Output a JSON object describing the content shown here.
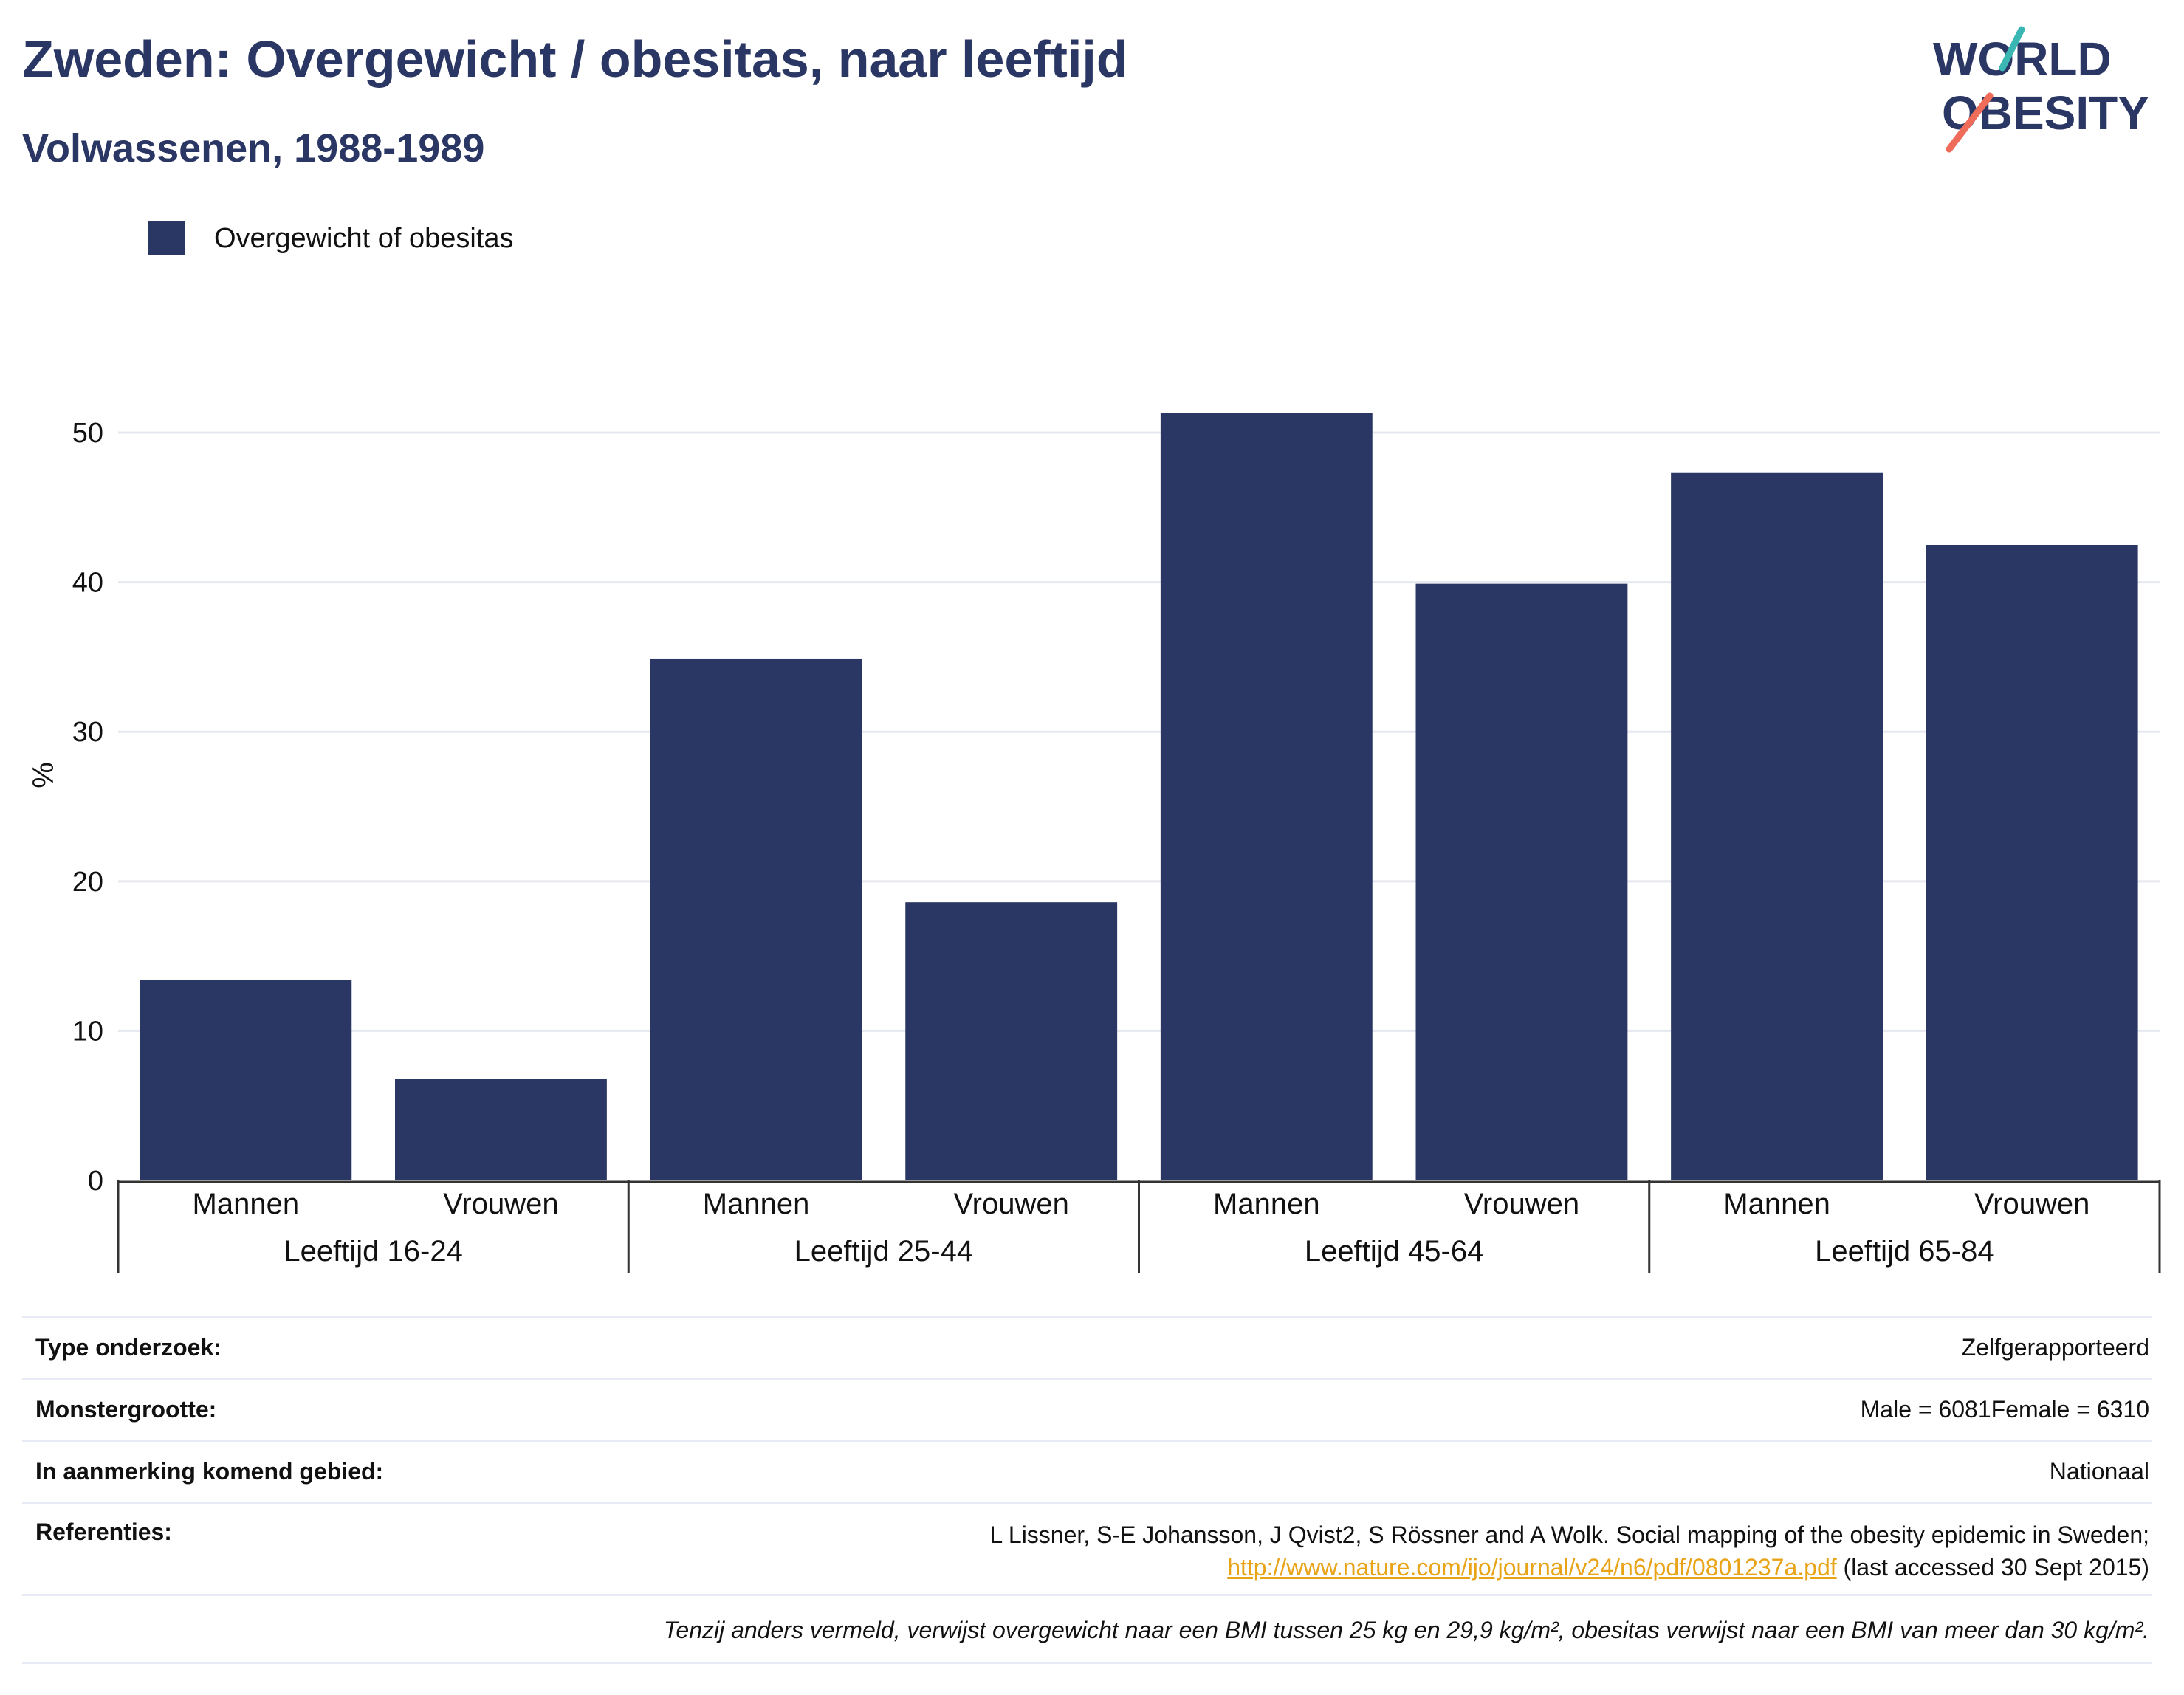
{
  "title": "Zweden: Overgewicht / obesitas, naar leeftijd",
  "subtitle": "Volwassenen, 1988-1989",
  "logo": {
    "line1": "WORLD",
    "line2": "OBESITY"
  },
  "colors": {
    "bar": "#2a3663",
    "title": "#2a3663",
    "grid": "#e6e8f0",
    "link": "#e8a317",
    "logo_teal": "#3ab7b3",
    "logo_coral": "#ef6b5a"
  },
  "chart_data": {
    "type": "bar",
    "title": "",
    "ylabel": "%",
    "ylim": [
      0,
      54
    ],
    "yticks": [
      0,
      10,
      20,
      30,
      40,
      50
    ],
    "grid": true,
    "legend_position": "top-left",
    "categories": [
      "Mannen",
      "Vrouwen",
      "Mannen",
      "Vrouwen",
      "Mannen",
      "Vrouwen",
      "Mannen",
      "Vrouwen"
    ],
    "groups": [
      "Leeftijd 16-24",
      "Leeftijd 25-44",
      "Leeftijd 45-64",
      "Leeftijd 65-84"
    ],
    "series": [
      {
        "name": "Overgewicht of obesitas",
        "values": [
          13.4,
          6.8,
          34.9,
          18.6,
          51.3,
          39.9,
          47.3,
          42.5
        ]
      }
    ]
  },
  "info": {
    "type_label": "Type onderzoek:",
    "type_value": "Zelfgerapporteerd",
    "sample_label": "Monstergrootte:",
    "sample_value": "Male = 6081Female = 6310",
    "area_label": "In aanmerking komend gebied:",
    "area_value": "Nationaal",
    "ref_label": "Referenties:",
    "ref_text": "L Lissner, S-E Johansson, J Qvist2, S Rössner and A Wolk. Social mapping of the obesity epidemic in Sweden;",
    "ref_link": "http://www.nature.com/ijo/journal/v24/n6/pdf/0801237a.pdf",
    "ref_suffix": " (last accessed 30 Sept 2015)",
    "note": "Tenzij anders vermeld, verwijst overgewicht naar een BMI tussen 25 kg en 29,9 kg/m², obesitas verwijst naar een BMI van meer dan 30 kg/m²."
  }
}
